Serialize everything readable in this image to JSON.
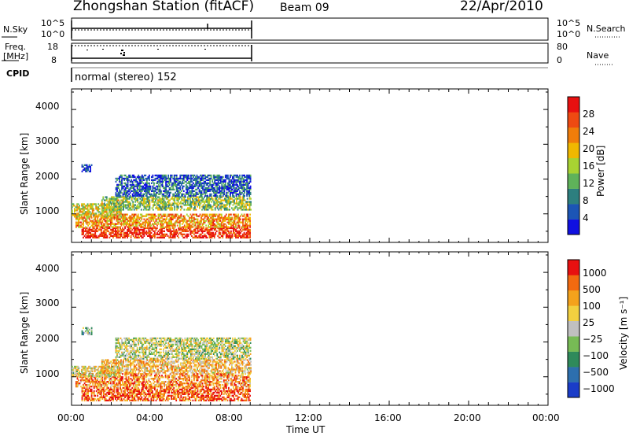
{
  "header": {
    "title": "Zhongshan Station (fitACF)",
    "beam": "Beam 09",
    "date": "22/Apr/2010"
  },
  "strips": {
    "nsky_label": "N.Sky",
    "nsky_ticks": [
      "10^5",
      "10^0"
    ],
    "nsearch_label": "N.Search",
    "freq_label_1": "Freq.",
    "freq_label_2": "[MHz]",
    "freq_ticks": [
      "18",
      "8"
    ],
    "nave_ticks": [
      "80",
      "0"
    ],
    "nave_label": "Nave",
    "cpid_label": "CPID",
    "cpid_text": "normal (stereo) 152"
  },
  "chart_data": [
    {
      "type": "heatmap",
      "panel": "power",
      "ylabel": "Slant Range [km]",
      "yticks": [
        "4000",
        "3000",
        "2000",
        "1000"
      ],
      "ylim": [
        180,
        4590
      ],
      "xlim": [
        0,
        24
      ],
      "colorbar_label": "Power [dB]",
      "colorbar_ticks": [
        "28",
        "24",
        "20",
        "16",
        "12",
        "8",
        "4"
      ],
      "colorbar_colors": [
        "#1010e0",
        "#1c55b5",
        "#2d7f7f",
        "#5fb25a",
        "#a8d232",
        "#f0b800",
        "#f07d0a",
        "#ee4a12",
        "#e81010"
      ],
      "regions": [
        {
          "t": [
            0.5,
            9.0
          ],
          "r": [
            300,
            600
          ],
          "level": 0.9
        },
        {
          "t": [
            0.2,
            9.0
          ],
          "r": [
            600,
            1000
          ],
          "level": 0.7
        },
        {
          "t": [
            0.0,
            2.5
          ],
          "r": [
            900,
            1300
          ],
          "level": 0.55
        },
        {
          "t": [
            1.5,
            9.0
          ],
          "r": [
            1100,
            1500
          ],
          "level": 0.45
        },
        {
          "t": [
            2.2,
            9.0
          ],
          "r": [
            1500,
            2100
          ],
          "level": 0.2
        },
        {
          "t": [
            0.5,
            1.0
          ],
          "r": [
            2200,
            2400
          ],
          "level": 0.05
        }
      ]
    },
    {
      "type": "heatmap",
      "panel": "velocity",
      "ylabel": "Slant Range [km]",
      "yticks": [
        "4000",
        "3000",
        "2000",
        "1000"
      ],
      "ylim": [
        180,
        4590
      ],
      "xlim": [
        0,
        24
      ],
      "xlabel": "Time UT",
      "xticks": [
        "00:00",
        "04:00",
        "08:00",
        "12:00",
        "16:00",
        "20:00",
        "00:00"
      ],
      "colorbar_label": "Velocity [m s⁻¹]",
      "colorbar_ticks": [
        "1000",
        "500",
        "100",
        "25",
        "−25",
        "−100",
        "−500",
        "−1000"
      ],
      "colorbar_colors": [
        "#1a3cc8",
        "#2d6fae",
        "#2f8a5b",
        "#77bb55",
        "#c0c0c0",
        "#f2d040",
        "#f4a21c",
        "#f26a10",
        "#e81010"
      ],
      "regions": [
        {
          "t": [
            0.5,
            9.0
          ],
          "r": [
            300,
            700
          ],
          "level": 0.85
        },
        {
          "t": [
            0.2,
            9.0
          ],
          "r": [
            700,
            1100
          ],
          "level": 0.75
        },
        {
          "t": [
            0.0,
            2.5
          ],
          "r": [
            1000,
            1300
          ],
          "level": 0.55
        },
        {
          "t": [
            1.5,
            9.0
          ],
          "r": [
            1100,
            1500
          ],
          "level": 0.65
        },
        {
          "t": [
            2.2,
            9.0
          ],
          "r": [
            1500,
            2100
          ],
          "level": 0.5
        },
        {
          "t": [
            0.5,
            1.0
          ],
          "r": [
            2200,
            2400
          ],
          "level": 0.35
        }
      ]
    }
  ]
}
